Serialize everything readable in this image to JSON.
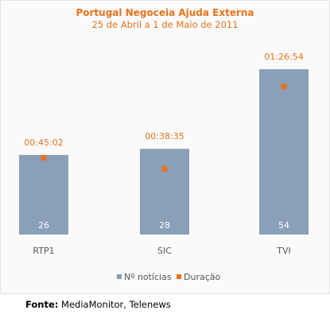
{
  "chart_data": {
    "type": "bar",
    "title": "Portugal Negoceia Ajuda Externa",
    "subtitle": "25 de Abril a 1 de Maio de 2011",
    "categories": [
      "RTP1",
      "SIC",
      "TVI"
    ],
    "series": [
      {
        "name": "Nº notícias",
        "type": "bar",
        "values": [
          26,
          28,
          54
        ],
        "color": "#8a9fb8"
      },
      {
        "name": "Duração",
        "type": "marker",
        "values": [
          "00:45:02",
          "00:38:35",
          "01:26:54"
        ],
        "color": "#e8731c"
      }
    ],
    "ylim": [
      0,
      60
    ],
    "grid": false,
    "legend": "bottom"
  },
  "source": {
    "label": "Fonte:",
    "text": "MediaMonitor, Telenews"
  },
  "colors": {
    "accent": "#e8731c",
    "bar": "#8a9fb8",
    "axis_text": "#555555"
  }
}
